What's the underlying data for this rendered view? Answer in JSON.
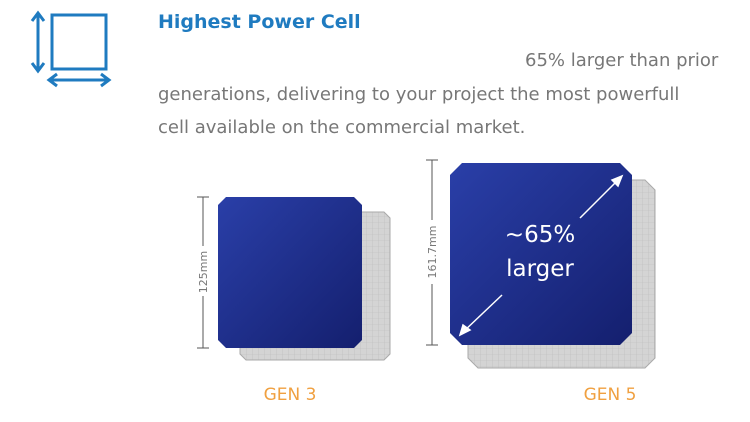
{
  "header": {
    "title": "Highest Power Cell"
  },
  "body": {
    "lines": [
      "65% larger than prior",
      "generations, delivering to your project the most powerfull",
      "cell available on the commercial market."
    ]
  },
  "cells": [
    {
      "dimension": "125mm",
      "label": "GEN 3"
    },
    {
      "dimension": "161.7mm",
      "label": "GEN 5",
      "callout": [
        "~65%",
        "larger"
      ]
    }
  ]
}
